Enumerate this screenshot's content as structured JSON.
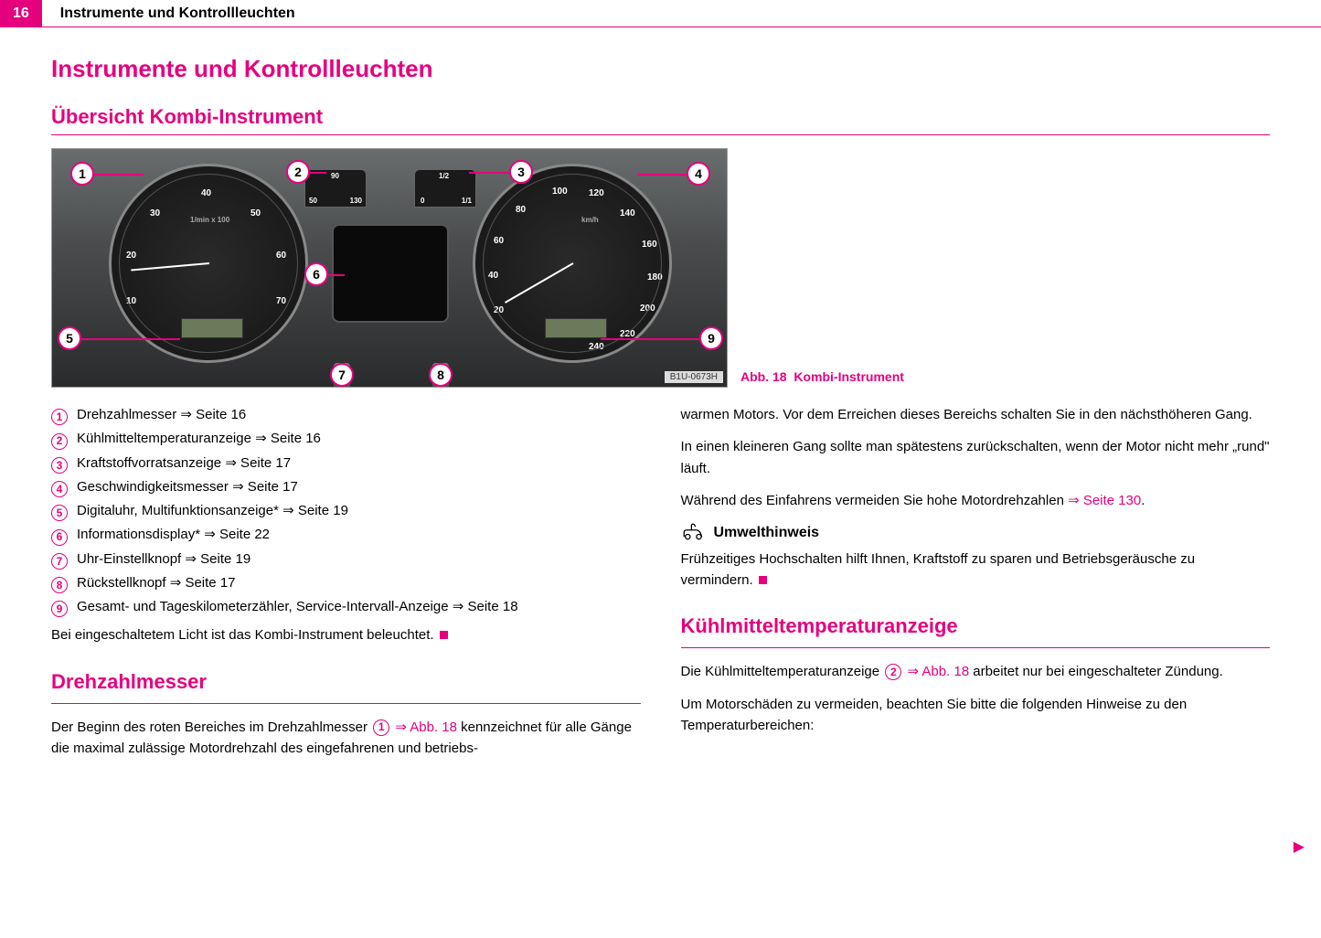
{
  "header": {
    "page_number": "16",
    "section": "Instrumente und Kontrollleuchten"
  },
  "title_main": "Instrumente und Kontrollleuchten",
  "title_overview": "Übersicht Kombi-Instrument",
  "figure": {
    "caption_prefix": "Abb. 18",
    "caption_text": "Kombi-Instrument",
    "image_code": "B1U-0673H",
    "callouts": [
      "1",
      "2",
      "3",
      "4",
      "5",
      "6",
      "7",
      "8",
      "9"
    ],
    "tach_labels": [
      "10",
      "20",
      "30",
      "40",
      "50",
      "60",
      "70"
    ],
    "tach_unit": "1/min x 100",
    "speedo_labels": [
      "20",
      "40",
      "60",
      "80",
      "100",
      "120",
      "140",
      "160",
      "180",
      "200",
      "220",
      "240"
    ],
    "speedo_unit": "km/h",
    "temp_labels": [
      "50",
      "90",
      "130"
    ],
    "fuel_labels": [
      "0",
      "1/2",
      "1/1"
    ]
  },
  "legend": [
    {
      "n": "1",
      "text": "Drehzahlmesser",
      "arrow": "⇒",
      "ref": "Seite 16"
    },
    {
      "n": "2",
      "text": "Kühlmitteltemperaturanzeige",
      "arrow": "⇒",
      "ref": "Seite 16"
    },
    {
      "n": "3",
      "text": "Kraftstoffvorratsanzeige",
      "arrow": "⇒",
      "ref": "Seite 17"
    },
    {
      "n": "4",
      "text": "Geschwindigkeitsmesser",
      "arrow": "⇒",
      "ref": "Seite 17"
    },
    {
      "n": "5",
      "text": "Digitaluhr, Multifunktionsanzeige*",
      "arrow": "⇒",
      "ref": "Seite 19"
    },
    {
      "n": "6",
      "text": "Informationsdisplay*",
      "arrow": "⇒",
      "ref": "Seite 22"
    },
    {
      "n": "7",
      "text": "Uhr-Einstellknopf",
      "arrow": "⇒",
      "ref": "Seite 19"
    },
    {
      "n": "8",
      "text": "Rückstellknopf",
      "arrow": "⇒",
      "ref": "Seite 17"
    },
    {
      "n": "9",
      "text": "Gesamt- und Tageskilometerzähler, Service-Intervall-Anzeige",
      "arrow": "⇒",
      "ref": "Seite 18"
    }
  ],
  "after_legend": "Bei eingeschaltetem Licht ist das Kombi-Instrument beleuchtet.",
  "section_tach": {
    "title": "Drehzahlmesser",
    "p1_a": "Der Beginn des roten Bereiches im Drehzahlmesser ",
    "p1_ref": "⇒ Abb. 18",
    "p1_b": " kennzeichnet für alle Gänge die maximal zulässige Motordrehzahl des eingefahrenen und betriebs-"
  },
  "col_right": {
    "p1": "warmen Motors. Vor dem Erreichen dieses Bereichs schalten Sie in den nächsthöheren Gang.",
    "p2": "In einen kleineren Gang sollte man spätestens zurückschalten, wenn der Motor nicht mehr „rund\" läuft.",
    "p3_a": "Während des Einfahrens vermeiden Sie hohe Motordrehzahlen ",
    "p3_ref": "⇒ Seite 130",
    "p3_b": ".",
    "note_title": "Umwelthinweis",
    "note_body": "Frühzeitiges Hochschalten hilft Ihnen, Kraftstoff zu sparen und Betriebsgeräusche zu vermindern."
  },
  "section_coolant": {
    "title": "Kühlmitteltemperaturanzeige",
    "p1_a": "Die Kühlmitteltemperaturanzeige ",
    "p1_ref": "⇒ Abb. 18",
    "p1_b": " arbeitet nur bei eingeschalteter Zündung.",
    "p2": "Um Motorschäden zu vermeiden, beachten Sie bitte die folgenden Hinweise zu den Temperaturbereichen:"
  },
  "colors": {
    "accent": "#e5007e",
    "text": "#000000",
    "bg": "#ffffff"
  }
}
